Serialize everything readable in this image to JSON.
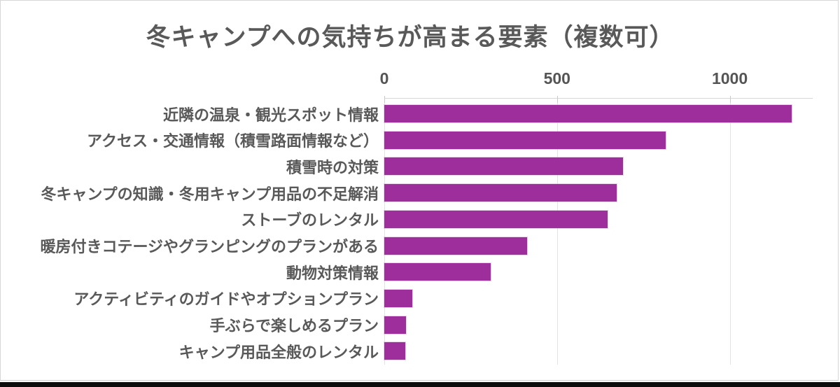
{
  "card": {
    "background": "#ffffff",
    "border_color": "#d7d7d7",
    "bottom_edge_color": "#0d0d0d"
  },
  "chart_data": {
    "type": "bar",
    "orientation": "horizontal",
    "title": "冬キャンプへの気持ちが高まる要素（複数可）",
    "categories": [
      "近隣の温泉・観光スポット情報",
      "アクセス・交通情報（積雪路面情報など）",
      "積雪時の対策",
      "冬キャンプの知識・冬用キャンプ用品の不足解消",
      "ストーブのレンタル",
      "暖房付きコテージやグランピングのプランがある",
      "動物対策情報",
      "アクティビティのガイドやオプションプラン",
      "手ぶらで楽しめるプラン",
      "キャンプ用品全般のレンタル"
    ],
    "values": [
      1180,
      815,
      690,
      672,
      647,
      413,
      307,
      82,
      63,
      61
    ],
    "xlim": [
      0,
      1240
    ],
    "x_ticks": [
      0,
      500,
      1000
    ],
    "x_tick_labels": [
      "0",
      "500",
      "1000"
    ],
    "axis_position": "top",
    "grid": true,
    "legend": false,
    "xlabel": "",
    "ylabel": "",
    "bar_color": "#9D2E9C",
    "title_color": "#595959",
    "label_color": "#595959",
    "tick_color": "#555555",
    "gridline_color": "#e3e3e3"
  }
}
